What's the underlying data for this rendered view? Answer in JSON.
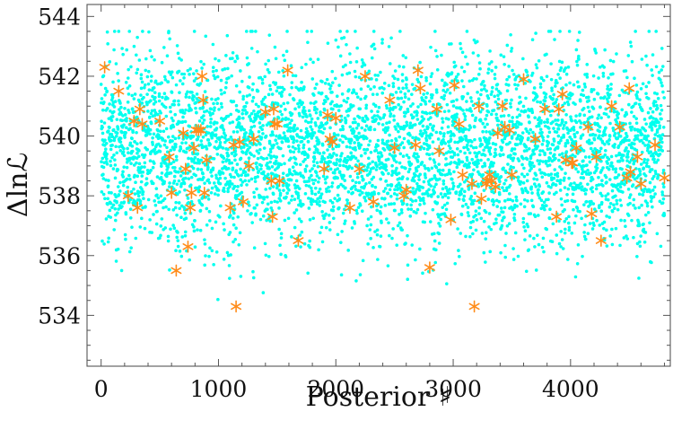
{
  "chart_data": {
    "type": "scatter",
    "xlabel": "Posterior ♯",
    "ylabel": "Δlnℒ",
    "xlim": [
      -120,
      4850
    ],
    "ylim": [
      532.3,
      544.4
    ],
    "x_ticks": [
      0,
      1000,
      2000,
      3000,
      4000
    ],
    "x_tick_labels": [
      "0",
      "1000",
      "2000",
      "3000",
      "4000"
    ],
    "y_ticks": [
      534,
      536,
      538,
      540,
      542,
      544
    ],
    "y_tick_labels": [
      "534",
      "536",
      "538",
      "540",
      "542",
      "544"
    ],
    "grid": false,
    "legend": "none",
    "series": [
      {
        "marker": "dot",
        "color": "#00ffee",
        "count": 4800,
        "x_range": [
          0,
          4800
        ],
        "y_center": 539.6,
        "y_spread": 1.6,
        "y_range": [
          532.4,
          543.5
        ]
      },
      {
        "marker": "asterisk",
        "color": "#ff8c1a",
        "x": [
          30,
          150,
          230,
          280,
          310,
          330,
          350,
          500,
          580,
          600,
          640,
          700,
          720,
          740,
          760,
          770,
          790,
          810,
          830,
          850,
          860,
          870,
          880,
          900,
          1100,
          1130,
          1150,
          1180,
          1210,
          1260,
          1300,
          1400,
          1450,
          1460,
          1470,
          1480,
          1500,
          1520,
          1590,
          1680,
          1900,
          1930,
          1950,
          1970,
          2000,
          2120,
          2200,
          2250,
          2320,
          2460,
          2500,
          2580,
          2600,
          2680,
          2700,
          2720,
          2800,
          2860,
          2880,
          2980,
          3010,
          3050,
          3080,
          3160,
          3180,
          3220,
          3240,
          3280,
          3290,
          3310,
          3330,
          3360,
          3380,
          3420,
          3440,
          3480,
          3500,
          3600,
          3700,
          3780,
          3880,
          3900,
          3930,
          3960,
          4010,
          4020,
          4050,
          4150,
          4180,
          4220,
          4260,
          4350,
          4420,
          4480,
          4500,
          4510,
          4570,
          4600,
          4720,
          4800
        ],
        "y": [
          542.3,
          541.5,
          538.0,
          540.5,
          537.6,
          540.9,
          540.4,
          540.5,
          539.3,
          538.1,
          535.5,
          540.1,
          538.9,
          536.3,
          537.6,
          538.1,
          539.6,
          540.2,
          540.2,
          540.2,
          542.0,
          541.2,
          538.1,
          539.2,
          537.6,
          539.7,
          534.3,
          539.8,
          537.8,
          539.0,
          539.9,
          540.8,
          538.5,
          537.3,
          540.9,
          540.4,
          540.4,
          538.5,
          542.2,
          536.5,
          538.9,
          540.7,
          539.9,
          539.8,
          540.6,
          537.6,
          538.9,
          542.0,
          537.8,
          541.2,
          539.6,
          538.0,
          538.2,
          539.7,
          542.2,
          541.6,
          535.6,
          540.9,
          539.5,
          537.2,
          541.7,
          540.4,
          538.7,
          538.4,
          534.3,
          541.0,
          537.9,
          538.4,
          538.5,
          538.7,
          538.5,
          538.3,
          540.1,
          541.0,
          540.3,
          540.2,
          538.7,
          541.9,
          539.9,
          540.9,
          537.3,
          540.9,
          541.4,
          539.2,
          539.1,
          539.1,
          539.6,
          540.3,
          537.4,
          539.3,
          536.5,
          541.0,
          540.3,
          538.6,
          541.6,
          538.8,
          539.3,
          538.4,
          539.7,
          538.6
        ]
      }
    ]
  }
}
